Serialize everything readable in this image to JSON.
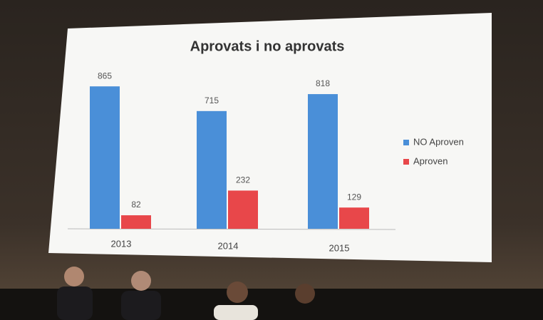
{
  "chart_data": {
    "type": "bar",
    "title": "Aprovats i no aprovats",
    "categories": [
      "2013",
      "2014",
      "2015"
    ],
    "series": [
      {
        "name": "NO Aproven",
        "color": "#4a8fd8",
        "values": [
          865,
          715,
          818
        ]
      },
      {
        "name": "Aproven",
        "color": "#e8474a",
        "values": [
          82,
          232,
          129
        ]
      }
    ],
    "legend": "right"
  }
}
